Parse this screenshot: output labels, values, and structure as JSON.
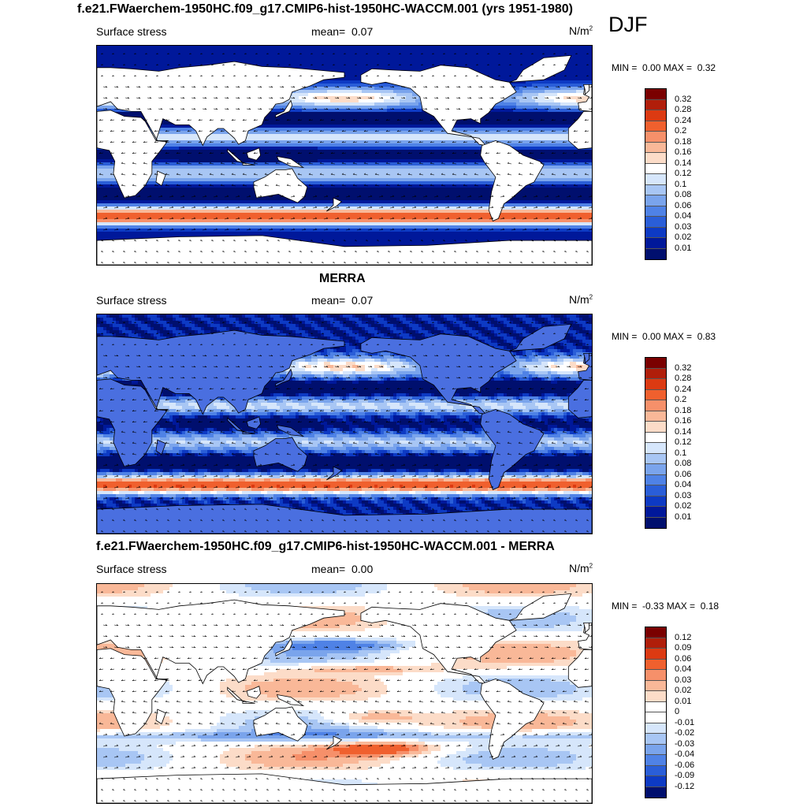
{
  "header": {
    "title": "f.e21.FWaerchem-1950HC.f09_g17.CMIP6-hist-1950HC-WACCM.001 (yrs 1951-1980)",
    "season": "DJF"
  },
  "panels": [
    {
      "id": "model",
      "title": "",
      "variable": "Surface stress",
      "mean_label": "mean=",
      "mean_value": "0.07",
      "units": "N/m",
      "units_exp": "2",
      "min_label": "MIN =",
      "min_value": "0.00",
      "max_label": "MAX =",
      "max_value": "0.32",
      "colorbar_labels": [
        "0.32",
        "0.28",
        "0.24",
        "0.2",
        "0.18",
        "0.16",
        "0.14",
        "0.12",
        "0.1",
        "0.08",
        "0.06",
        "0.04",
        "0.03",
        "0.02",
        "0.01"
      ],
      "colors": [
        "#7a0000",
        "#b01e0a",
        "#dc3a12",
        "#f0602e",
        "#f6906a",
        "#f9b898",
        "#fcdcc8",
        "#ffffff",
        "#d6e6fb",
        "#a8c6f4",
        "#7aa4ec",
        "#4f82e6",
        "#2a5ed8",
        "#0d3ac4",
        "#00189a",
        "#000f6e"
      ],
      "scheme": "abs"
    },
    {
      "id": "obs",
      "title": "MERRA",
      "variable": "Surface stress",
      "mean_label": "mean=",
      "mean_value": "0.07",
      "units": "N/m",
      "units_exp": "2",
      "min_label": "MIN =",
      "min_value": "0.00",
      "max_label": "MAX =",
      "max_value": "0.83",
      "colorbar_labels": [
        "0.32",
        "0.28",
        "0.24",
        "0.2",
        "0.18",
        "0.16",
        "0.14",
        "0.12",
        "0.1",
        "0.08",
        "0.06",
        "0.04",
        "0.03",
        "0.02",
        "0.01"
      ],
      "colors": [
        "#7a0000",
        "#b01e0a",
        "#dc3a12",
        "#f0602e",
        "#f6906a",
        "#f9b898",
        "#fcdcc8",
        "#ffffff",
        "#d6e6fb",
        "#a8c6f4",
        "#7aa4ec",
        "#4f82e6",
        "#2a5ed8",
        "#0d3ac4",
        "#00189a",
        "#000f6e"
      ],
      "scheme": "abs"
    },
    {
      "id": "diff",
      "title": "f.e21.FWaerchem-1950HC.f09_g17.CMIP6-hist-1950HC-WACCM.001 - MERRA",
      "variable": "Surface stress",
      "mean_label": "mean=",
      "mean_value": "0.00",
      "units": "N/m",
      "units_exp": "2",
      "min_label": "MIN =",
      "min_value": "-0.33",
      "max_label": "MAX =",
      "max_value": "0.18",
      "colorbar_labels": [
        "0.12",
        "0.09",
        "0.06",
        "0.04",
        "0.03",
        "0.02",
        "0.01",
        "0",
        "-0.01",
        "-0.02",
        "-0.03",
        "-0.04",
        "-0.06",
        "-0.09",
        "-0.12"
      ],
      "colors": [
        "#7a0000",
        "#b01e0a",
        "#dc3a12",
        "#f0602e",
        "#f6906a",
        "#f9b898",
        "#fcdcc8",
        "#ffffff",
        "#ffffff",
        "#d6e6fb",
        "#a8c6f4",
        "#7aa4ec",
        "#4f82e6",
        "#2a5ed8",
        "#0d3ac4",
        "#000f6e"
      ],
      "scheme": "diff"
    }
  ]
}
